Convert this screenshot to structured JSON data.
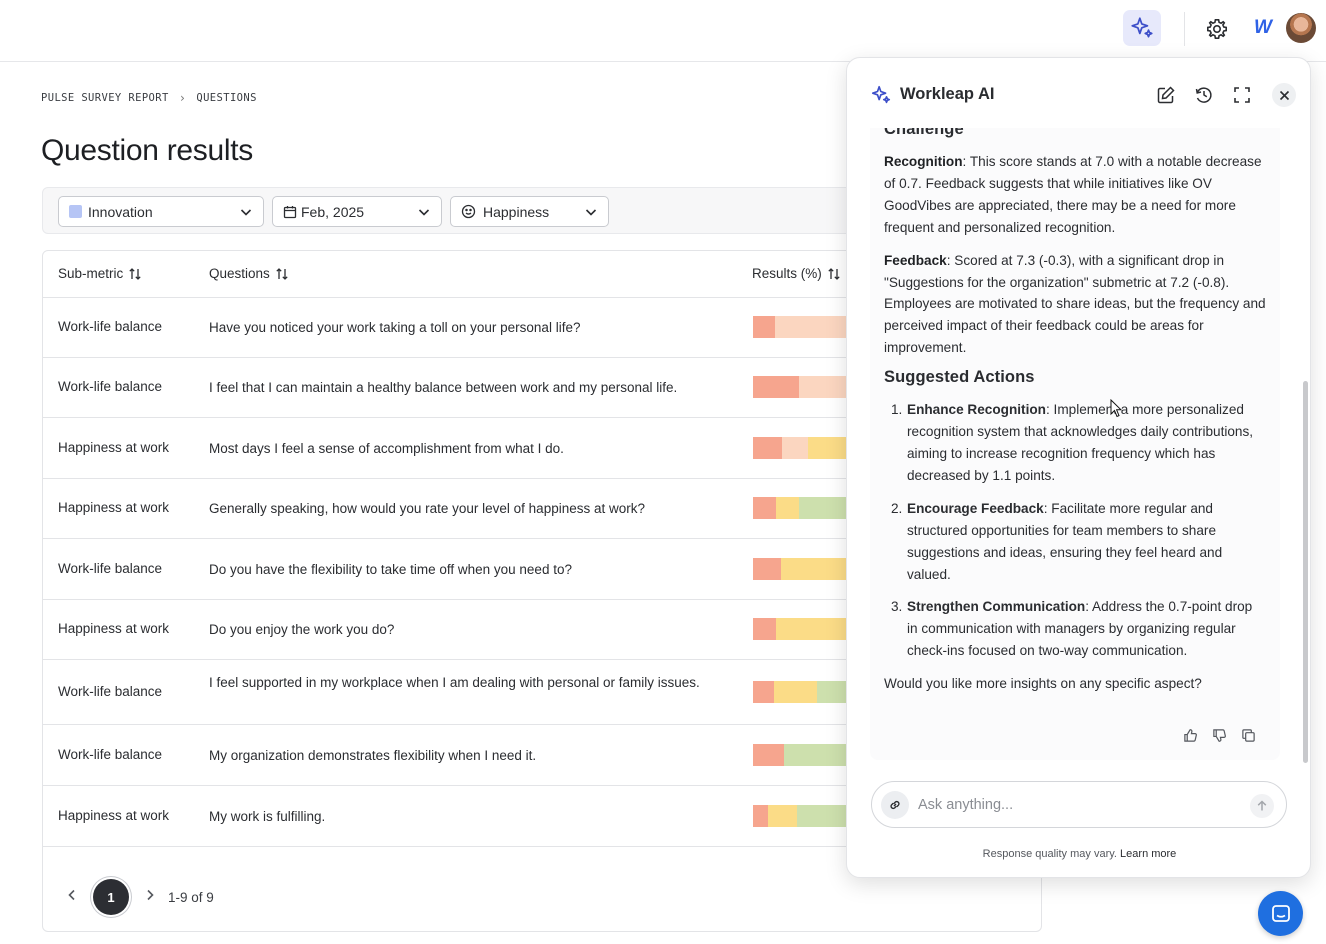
{
  "breadcrumb": {
    "root": "PULSE SURVEY REPORT",
    "current": "QUESTIONS"
  },
  "page_title": "Question results",
  "filters": {
    "metric": {
      "value": "Innovation",
      "swatch": "#b6c5f5"
    },
    "period": {
      "value": "Feb, 2025"
    },
    "category": {
      "value": "Happiness"
    }
  },
  "table": {
    "headers": {
      "submetric": "Sub-metric",
      "questions": "Questions",
      "results": "Results (%)"
    },
    "rows": [
      {
        "submetric": "Work-life balance",
        "question": "Have you noticed your work taking a toll on your personal life?"
      },
      {
        "submetric": "Work-life balance",
        "question": "I feel that I can maintain a healthy balance between work and my personal life."
      },
      {
        "submetric": "Happiness at work",
        "question": "Most days I feel a sense of accomplishment from what I do."
      },
      {
        "submetric": "Happiness at work",
        "question": "Generally speaking, how would you rate your level of happiness at work?"
      },
      {
        "submetric": "Work-life balance",
        "question": "Do you have the flexibility to take time off when you need to?"
      },
      {
        "submetric": "Happiness at work",
        "question": "Do you enjoy the work you do?"
      },
      {
        "submetric": "Work-life balance",
        "question": "I feel supported in my workplace when I am dealing with personal or family issues."
      },
      {
        "submetric": "Work-life balance",
        "question": "My organization demonstrates flexibility when I need it."
      },
      {
        "submetric": "Happiness at work",
        "question": "My work is fulfilling."
      }
    ],
    "bar_colors": {
      "red": "#f6a58e",
      "peach": "#fbd6c0",
      "yellow": "#fbdc87",
      "green": "#cde0ad"
    }
  },
  "pagination": {
    "current_page": "1",
    "range": "1-9 of 9"
  },
  "ai_panel": {
    "title": "Workleap AI",
    "section_challenge": "Challenge",
    "recognition_label": "Recognition",
    "recognition_text": ": This score stands at 7.0 with a notable decrease of 0.7. Feedback suggests that while initiatives like OV GoodVibes are appreciated, there may be a need for more frequent and personalized recognition.",
    "feedback_label": "Feedback",
    "feedback_text": ": Scored at 7.3 (-0.3), with a significant drop in \"Suggestions for the organization\" submetric at 7.2 (-0.8). Employees are motivated to share ideas, but the frequency and perceived impact of their feedback could be areas for improvement.",
    "section_actions": "Suggested Actions",
    "actions": [
      {
        "num": "1.",
        "label": "Enhance Recognition",
        "text": ": Implement a more personalized recognition system that acknowledges daily contributions, aiming to increase recognition frequency which has decreased by 1.1 points."
      },
      {
        "num": "2.",
        "label": "Encourage Feedback",
        "text": ": Facilitate more regular and structured opportunities for team members to share suggestions and ideas, ensuring they feel heard and valued."
      },
      {
        "num": "3.",
        "label": "Strengthen Communication",
        "text": ": Address the 0.7-point drop in communication with managers by organizing regular check-ins focused on two-way communication."
      }
    ],
    "closing": "Would you like more insights on any specific aspect?",
    "composer_placeholder": "Ask anything...",
    "disclaimer": "Response quality may vary.",
    "learn_more": "Learn more"
  },
  "colors": {
    "accent": "#3d4fc9",
    "chat_button": "#1f6fe0",
    "ai_button_bg": "#e7e9fb"
  },
  "icons": [
    "sparkle-icon",
    "gear-icon",
    "edit-icon",
    "history-icon",
    "expand-icon",
    "close-icon",
    "link-icon",
    "send-icon",
    "thumbs-up-icon",
    "thumbs-down-icon",
    "copy-icon",
    "calendar-icon",
    "smiley-icon",
    "chevron-down-icon",
    "sort-icon",
    "chat-icon"
  ]
}
